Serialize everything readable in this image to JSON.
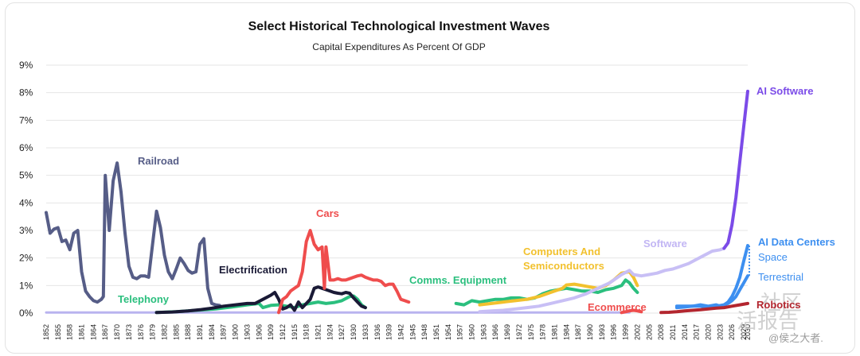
{
  "chart_data": {
    "type": "line",
    "title": "Select Historical Technological Investment Waves",
    "subtitle": "Capital Expenditures As Percent Of GDP",
    "ylim": [
      0,
      9
    ],
    "y_ticks": [
      "0%",
      "1%",
      "2%",
      "3%",
      "4%",
      "5%",
      "6%",
      "7%",
      "8%",
      "9%"
    ],
    "xlim": [
      1852,
      2030
    ],
    "x_ticks": [
      1852,
      1855,
      1858,
      1861,
      1864,
      1867,
      1870,
      1873,
      1876,
      1879,
      1882,
      1885,
      1888,
      1891,
      1894,
      1897,
      1900,
      1903,
      1906,
      1909,
      1912,
      1915,
      1918,
      1921,
      1924,
      1927,
      1930,
      1933,
      1936,
      1939,
      1942,
      1945,
      1948,
      1951,
      1954,
      1957,
      1960,
      1963,
      1966,
      1969,
      1972,
      1975,
      1978,
      1981,
      1984,
      1987,
      1990,
      1993,
      1996,
      1999,
      2002,
      2005,
      2008,
      2011,
      2014,
      2017,
      2020,
      2023,
      2026,
      2029,
      2030
    ],
    "series": [
      {
        "name": "Baseline",
        "color": "#b9b3ef",
        "x": [
          1852,
          2000
        ],
        "y": [
          0.02,
          0.02
        ]
      },
      {
        "name": "Railroad",
        "label": "Railroad",
        "color": "#565d87",
        "x": [
          1852,
          1853,
          1854,
          1855,
          1856,
          1857,
          1858,
          1859,
          1860,
          1861,
          1862,
          1863,
          1864,
          1865,
          1866,
          1866.5,
          1867,
          1868,
          1869,
          1870,
          1871,
          1872,
          1873,
          1874,
          1875,
          1876,
          1877,
          1878,
          1879,
          1880,
          1881,
          1882,
          1883,
          1884,
          1885,
          1886,
          1887,
          1888,
          1889,
          1890,
          1891,
          1892,
          1893,
          1894,
          1895,
          1896
        ],
        "y": [
          3.65,
          2.9,
          3.05,
          3.1,
          2.6,
          2.65,
          2.3,
          2.9,
          3.0,
          1.5,
          0.8,
          0.6,
          0.45,
          0.4,
          0.5,
          0.6,
          5.0,
          3.0,
          4.8,
          5.45,
          4.4,
          2.9,
          1.7,
          1.3,
          1.25,
          1.35,
          1.35,
          1.3,
          2.5,
          3.7,
          3.1,
          2.1,
          1.5,
          1.25,
          1.6,
          2.0,
          1.8,
          1.55,
          1.45,
          1.5,
          2.5,
          2.7,
          0.9,
          0.35,
          0.3,
          0.28
        ]
      },
      {
        "name": "Telephony",
        "label": "Telephony",
        "color": "#2bbf7e",
        "x": [
          1880,
          1885,
          1890,
          1895,
          1899,
          1903,
          1906,
          1907,
          1909,
          1911,
          1913,
          1915,
          1917,
          1919,
          1921,
          1923,
          1925,
          1927,
          1929,
          1930,
          1931,
          1932,
          1933
        ],
        "y": [
          0.02,
          0.05,
          0.1,
          0.15,
          0.22,
          0.3,
          0.35,
          0.2,
          0.28,
          0.3,
          0.25,
          0.2,
          0.3,
          0.35,
          0.4,
          0.35,
          0.38,
          0.45,
          0.6,
          0.62,
          0.5,
          0.3,
          0.2
        ]
      },
      {
        "name": "Electrification",
        "label": "Electrification",
        "color": "#1a1a36",
        "x": [
          1880,
          1884,
          1888,
          1891,
          1894,
          1897,
          1900,
          1903,
          1905,
          1907,
          1909,
          1910,
          1911,
          1912,
          1913,
          1914,
          1915,
          1916,
          1917,
          1918,
          1919,
          1920,
          1921,
          1922,
          1923,
          1924,
          1925,
          1926,
          1927,
          1928,
          1929,
          1930,
          1931,
          1932,
          1933
        ],
        "y": [
          0.02,
          0.04,
          0.08,
          0.12,
          0.18,
          0.25,
          0.3,
          0.35,
          0.35,
          0.5,
          0.65,
          0.75,
          0.5,
          0.15,
          0.2,
          0.3,
          0.1,
          0.4,
          0.2,
          0.35,
          0.5,
          0.9,
          0.95,
          0.9,
          0.85,
          0.8,
          0.75,
          0.72,
          0.7,
          0.75,
          0.72,
          0.55,
          0.4,
          0.25,
          0.2
        ]
      },
      {
        "name": "Cars",
        "label": "Cars",
        "color": "#ef4d4d",
        "x": [
          1911,
          1912,
          1913,
          1914,
          1915,
          1916,
          1917,
          1918,
          1919,
          1920,
          1921,
          1922,
          1922.6,
          1923,
          1924,
          1925,
          1926,
          1927,
          1928,
          1929,
          1930,
          1931,
          1932,
          1933,
          1934,
          1935,
          1936,
          1937,
          1938,
          1939,
          1940,
          1941,
          1942,
          1943,
          1944
        ],
        "y": [
          0.02,
          0.5,
          0.6,
          0.8,
          0.9,
          1.0,
          1.5,
          2.6,
          3.0,
          2.5,
          2.3,
          2.4,
          0.9,
          2.4,
          1.2,
          1.2,
          1.25,
          1.2,
          1.2,
          1.25,
          1.3,
          1.35,
          1.38,
          1.3,
          1.25,
          1.2,
          1.2,
          1.15,
          1.0,
          1.05,
          1.05,
          0.8,
          0.5,
          0.45,
          0.4
        ]
      },
      {
        "name": "Comms. Equipment",
        "label": "Comms. Equipment",
        "color": "#2bbf7e",
        "x": [
          1956,
          1958,
          1960,
          1962,
          1964,
          1966,
          1968,
          1970,
          1972,
          1974,
          1976,
          1978,
          1980,
          1982,
          1984,
          1986,
          1988,
          1990,
          1992,
          1994,
          1996,
          1998,
          1999,
          2000,
          2001,
          2002
        ],
        "y": [
          0.35,
          0.3,
          0.45,
          0.4,
          0.45,
          0.5,
          0.5,
          0.55,
          0.55,
          0.5,
          0.55,
          0.7,
          0.8,
          0.85,
          0.9,
          0.85,
          0.8,
          0.8,
          0.75,
          0.85,
          0.9,
          1.0,
          1.2,
          1.1,
          0.9,
          0.75
        ]
      },
      {
        "name": "Computers And Semiconductors",
        "label": "Computers And Semiconductors",
        "color": "#f2c12e",
        "x": [
          1962,
          1965,
          1968,
          1971,
          1974,
          1977,
          1980,
          1983,
          1984,
          1986,
          1988,
          1990,
          1992,
          1994,
          1996,
          1998,
          2000,
          2001,
          2002
        ],
        "y": [
          0.3,
          0.35,
          0.4,
          0.45,
          0.5,
          0.6,
          0.75,
          0.9,
          1.02,
          1.05,
          1.0,
          0.95,
          0.9,
          1.0,
          1.2,
          1.45,
          1.5,
          1.3,
          1.0
        ]
      },
      {
        "name": "Software",
        "label": "Software",
        "color": "#c8bff5",
        "x": [
          1962,
          1965,
          1968,
          1971,
          1974,
          1977,
          1980,
          1983,
          1986,
          1989,
          1992,
          1995,
          1998,
          2000,
          2001,
          2003,
          2005,
          2007,
          2009,
          2011,
          2013,
          2015,
          2017,
          2019,
          2021,
          2023,
          2024
        ],
        "y": [
          0.05,
          0.08,
          0.1,
          0.15,
          0.2,
          0.25,
          0.35,
          0.45,
          0.55,
          0.7,
          0.9,
          1.1,
          1.4,
          1.55,
          1.4,
          1.35,
          1.4,
          1.45,
          1.55,
          1.6,
          1.7,
          1.8,
          1.95,
          2.1,
          2.25,
          2.3,
          2.35
        ]
      },
      {
        "name": "AI Software",
        "label": "AI Software",
        "color": "#7b4be8",
        "x": [
          2024,
          2025,
          2026,
          2027,
          2028,
          2029,
          2030
        ],
        "y": [
          2.35,
          2.55,
          3.2,
          4.2,
          5.5,
          6.8,
          8.05
        ]
      },
      {
        "name": "Ecommerce",
        "label": "Ecommerce",
        "color": "#ef4d4d",
        "x": [
          1998,
          1999,
          2000,
          2001,
          2002,
          2003
        ],
        "y": [
          0.02,
          0.05,
          0.08,
          0.1,
          0.08,
          0.05
        ]
      },
      {
        "name": "AI Data Centers Space",
        "label": "Space",
        "color": "#3d8ff0",
        "x": [
          2012,
          2014,
          2016,
          2018,
          2020,
          2022,
          2023,
          2024,
          2025,
          2026,
          2027,
          2028,
          2029,
          2030
        ],
        "y": [
          0.25,
          0.25,
          0.25,
          0.3,
          0.25,
          0.3,
          0.25,
          0.3,
          0.4,
          0.6,
          0.9,
          1.3,
          1.9,
          2.45
        ]
      },
      {
        "name": "AI Data Centers Terrestrial",
        "label": "Terrestrial",
        "color": "#3d8ff0",
        "x": [
          2012,
          2014,
          2016,
          2018,
          2020,
          2022,
          2024,
          2025,
          2026,
          2027,
          2028,
          2029,
          2030
        ],
        "y": [
          0.2,
          0.22,
          0.25,
          0.25,
          0.22,
          0.25,
          0.3,
          0.35,
          0.45,
          0.6,
          0.85,
          1.1,
          1.35
        ]
      },
      {
        "name": "Robotics",
        "label": "Robotics",
        "color": "#b3262f",
        "x": [
          2008,
          2010,
          2012,
          2014,
          2016,
          2018,
          2020,
          2022,
          2024,
          2026,
          2028,
          2030
        ],
        "y": [
          0.02,
          0.03,
          0.05,
          0.08,
          0.1,
          0.12,
          0.15,
          0.18,
          0.2,
          0.25,
          0.3,
          0.35
        ]
      }
    ],
    "group_label": "AI Data Centers"
  },
  "watermark": {
    "text": "@侯之大者.",
    "big": "活报告",
    "big2": "社区"
  }
}
